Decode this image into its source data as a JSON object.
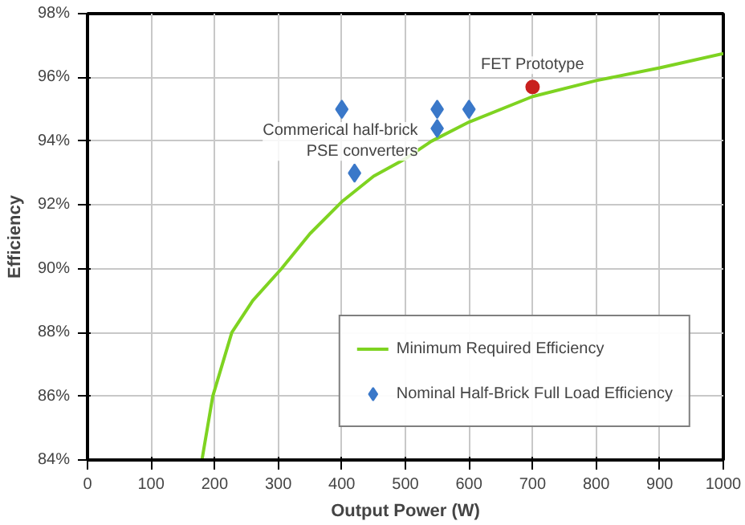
{
  "chart_data": {
    "type": "line",
    "xlabel": "Output Power (W)",
    "ylabel": "Efficiency",
    "xlim": [
      0,
      1000
    ],
    "xticks": [
      0,
      100,
      200,
      300,
      400,
      500,
      600,
      700,
      800,
      900,
      1000
    ],
    "ylim": [
      84,
      98
    ],
    "yticks": [
      {
        "value": 84,
        "label": "84%"
      },
      {
        "value": 86,
        "label": "86%"
      },
      {
        "value": 88,
        "label": "88%"
      },
      {
        "value": 90,
        "label": "90%"
      },
      {
        "value": 92,
        "label": "92%"
      },
      {
        "value": 94,
        "label": "94%"
      },
      {
        "value": 96,
        "label": "96%"
      },
      {
        "value": 98,
        "label": "98%"
      }
    ],
    "grid": true,
    "legend": "bottom right",
    "series": [
      {
        "name": "Minimum Required Efficiency",
        "color": "#7ed321",
        "marker": "none",
        "x": [
          180,
          197,
          227,
          260,
          305,
          350,
          400,
          450,
          500,
          541,
          600,
          700,
          800,
          900,
          1000
        ],
        "values": [
          84,
          86,
          88,
          89,
          90,
          91.1,
          92.1,
          92.9,
          93.45,
          94,
          94.6,
          95.4,
          95.9,
          96.3,
          96.75
        ]
      },
      {
        "name": "Nominal Half-Brick Full Load Efficiency",
        "type": "scatter",
        "color": "#3a78c9",
        "marker": "diamond",
        "x": [
          400,
          420,
          550,
          550,
          600
        ],
        "values": [
          95.0,
          93.0,
          95.0,
          94.4,
          95.0
        ]
      },
      {
        "type": "scatter",
        "color": "#c8201e",
        "marker": "circle",
        "x": [
          700
        ],
        "values": [
          95.7
        ]
      }
    ],
    "annotations": [
      {
        "text": "FET Prototype",
        "x": 700,
        "y": 95.7
      },
      {
        "text": "Commerical half-brick\nPSE converters",
        "x": 550,
        "y": 94.4
      }
    ]
  }
}
